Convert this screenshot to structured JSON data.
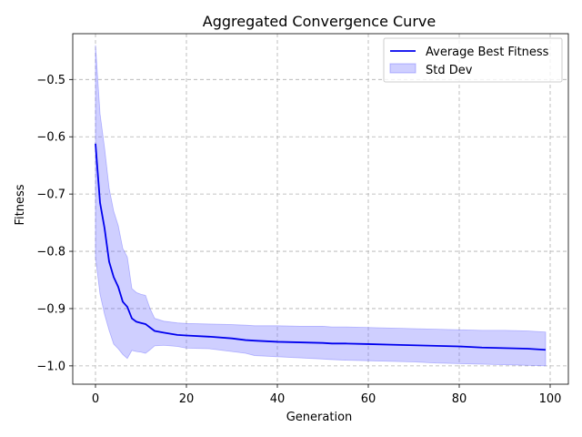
{
  "chart_data": {
    "type": "line",
    "title": "Aggregated Convergence Curve",
    "xlabel": "Generation",
    "ylabel": "Fitness",
    "xlim": [
      -5,
      104
    ],
    "ylim": [
      -1.032,
      -0.42
    ],
    "xticks": [
      0,
      20,
      40,
      60,
      80,
      100
    ],
    "yticks": [
      -1.0,
      -0.9,
      -0.8,
      -0.7,
      -0.6,
      -0.5
    ],
    "xtick_labels": [
      "0",
      "20",
      "40",
      "60",
      "80",
      "100"
    ],
    "ytick_labels": [
      "−1.0",
      "−0.9",
      "−0.8",
      "−0.7",
      "−0.6",
      "−0.5"
    ],
    "grid": true,
    "legend_position": "top-right",
    "colors": {
      "line": "#0000ee",
      "band": "#6a6aff",
      "grid": "#b0b0b0"
    },
    "series": [
      {
        "name": "Average Best Fitness",
        "kind": "line",
        "x": [
          0,
          1,
          2,
          3,
          4,
          5,
          6,
          7,
          8,
          9,
          10,
          11,
          12,
          13,
          15,
          18,
          20,
          25,
          30,
          33,
          35,
          40,
          45,
          50,
          52,
          55,
          60,
          65,
          70,
          75,
          80,
          85,
          90,
          95,
          99
        ],
        "y": [
          -0.612,
          -0.715,
          -0.76,
          -0.818,
          -0.845,
          -0.862,
          -0.888,
          -0.897,
          -0.917,
          -0.923,
          -0.925,
          -0.927,
          -0.933,
          -0.939,
          -0.942,
          -0.946,
          -0.947,
          -0.949,
          -0.952,
          -0.955,
          -0.956,
          -0.958,
          -0.959,
          -0.96,
          -0.961,
          -0.961,
          -0.962,
          -0.963,
          -0.964,
          -0.965,
          -0.966,
          -0.968,
          -0.969,
          -0.97,
          -0.972
        ]
      },
      {
        "name": "Std Dev",
        "kind": "band",
        "x": [
          0,
          1,
          2,
          3,
          4,
          5,
          6,
          7,
          8,
          9,
          10,
          11,
          12,
          13,
          15,
          18,
          20,
          25,
          30,
          33,
          35,
          40,
          45,
          50,
          52,
          55,
          60,
          65,
          70,
          75,
          80,
          85,
          90,
          95,
          99
        ],
        "upper": [
          -0.44,
          -0.56,
          -0.62,
          -0.69,
          -0.73,
          -0.755,
          -0.795,
          -0.81,
          -0.865,
          -0.872,
          -0.875,
          -0.877,
          -0.9,
          -0.917,
          -0.922,
          -0.925,
          -0.926,
          -0.927,
          -0.928,
          -0.929,
          -0.93,
          -0.93,
          -0.931,
          -0.931,
          -0.932,
          -0.932,
          -0.933,
          -0.934,
          -0.935,
          -0.936,
          -0.937,
          -0.938,
          -0.938,
          -0.939,
          -0.941
        ],
        "lower": [
          -0.81,
          -0.875,
          -0.91,
          -0.938,
          -0.962,
          -0.97,
          -0.98,
          -0.987,
          -0.973,
          -0.975,
          -0.976,
          -0.978,
          -0.972,
          -0.965,
          -0.964,
          -0.966,
          -0.969,
          -0.97,
          -0.975,
          -0.978,
          -0.982,
          -0.984,
          -0.986,
          -0.988,
          -0.989,
          -0.99,
          -0.991,
          -0.992,
          -0.993,
          -0.995,
          -0.996,
          -0.997,
          -0.998,
          -0.999,
          -1.0
        ]
      }
    ]
  }
}
